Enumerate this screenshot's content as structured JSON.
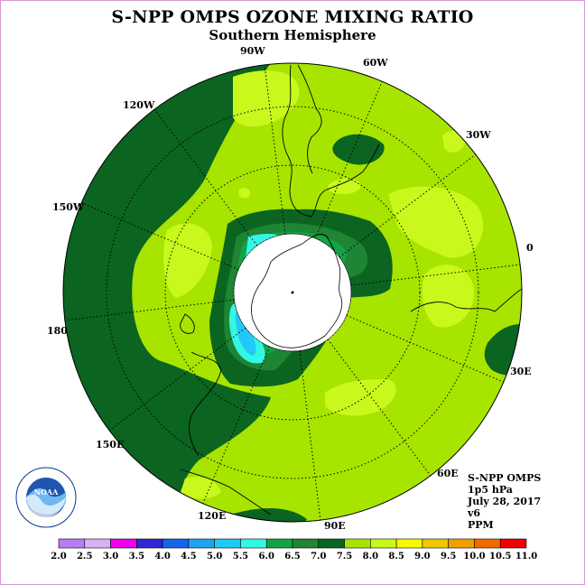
{
  "title": "S-NPP OMPS OZONE MIXING RATIO",
  "subtitle": "Southern Hemisphere",
  "info": {
    "line1": "S-NPP OMPS",
    "line2": "1p5 hPa",
    "line3": "July 28, 2017",
    "line4": "v6",
    "line5": "PPM"
  },
  "logo_text": "NOAA",
  "longitude_labels": [
    "90W",
    "60W",
    "30W",
    "0",
    "30E",
    "60E",
    "90E",
    "120E",
    "150E",
    "180",
    "150W",
    "120W"
  ],
  "colorbar": {
    "labels": [
      "2.0",
      "2.5",
      "3.0",
      "3.5",
      "4.0",
      "4.5",
      "5.0",
      "5.5",
      "6.0",
      "6.5",
      "7.0",
      "7.5",
      "8.0",
      "8.5",
      "9.0",
      "9.5",
      "10.0",
      "10.5",
      "11.0"
    ],
    "colors": [
      "#b97df3",
      "#d8b1f4",
      "#f000ee",
      "#2f26d6",
      "#1465ea",
      "#1fa3f2",
      "#21c9f6",
      "#34f6e4",
      "#13a346",
      "#1d8533",
      "#0b6420",
      "#a7e400",
      "#c8f81c",
      "#f8f800",
      "#f0c800",
      "#f0a000",
      "#ee6b00",
      "#f00000",
      "#a25c3a"
    ]
  }
}
